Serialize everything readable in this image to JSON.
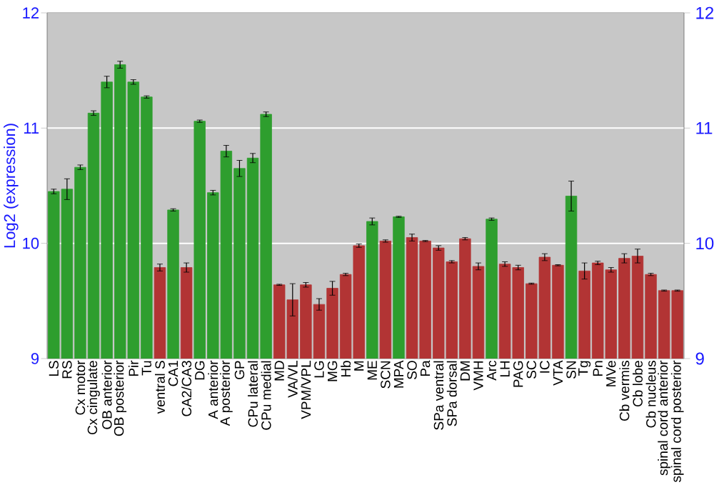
{
  "chart_data": {
    "type": "bar",
    "ylabel": "Log2 (expression)",
    "categories": [
      "LS",
      "RS",
      "Cx motor",
      "Cx cingulate",
      "OB anterior",
      "OB posterior",
      "Pir",
      "Tu",
      "ventral S",
      "CA1",
      "CA2/CA3",
      "DG",
      "A anterior",
      "A posterior",
      "GP",
      "CPu lateral",
      "CPu medial",
      "MD",
      "VA/VL",
      "VPM/VPL",
      "LG",
      "MG",
      "Hb",
      "M",
      "ME",
      "SCN",
      "MPA",
      "SO",
      "Pa",
      "SPa ventral",
      "SPa dorsal",
      "DM",
      "VMH",
      "Arc",
      "LH",
      "PAG",
      "SC",
      "IC",
      "VTA",
      "SN",
      "Tg",
      "Pn",
      "MVe",
      "Cb vermis",
      "Cb lobe",
      "Cb nucleus",
      "spinal cord anterior",
      "spinal cord posterior"
    ],
    "values": [
      10.45,
      10.47,
      10.66,
      11.13,
      11.4,
      11.55,
      11.4,
      11.27,
      9.79,
      10.29,
      9.79,
      11.06,
      10.44,
      10.8,
      10.65,
      10.74,
      11.12,
      9.64,
      9.51,
      9.64,
      9.47,
      9.61,
      9.73,
      9.98,
      10.19,
      10.02,
      10.23,
      10.05,
      10.02,
      9.96,
      9.84,
      10.04,
      9.8,
      10.21,
      9.82,
      9.79,
      9.65,
      9.88,
      9.81,
      10.41,
      9.76,
      9.83,
      9.77,
      9.87,
      9.89,
      9.73,
      9.59,
      9.59
    ],
    "errors": [
      0.02,
      0.09,
      0.02,
      0.02,
      0.05,
      0.03,
      0.02,
      0.01,
      0.03,
      0.01,
      0.04,
      0.01,
      0.02,
      0.05,
      0.07,
      0.04,
      0.02,
      0.005,
      0.14,
      0.02,
      0.05,
      0.06,
      0.01,
      0.015,
      0.03,
      0.01,
      0.005,
      0.03,
      0.005,
      0.02,
      0.01,
      0.01,
      0.03,
      0.01,
      0.02,
      0.02,
      0.005,
      0.03,
      0.005,
      0.13,
      0.07,
      0.015,
      0.02,
      0.04,
      0.06,
      0.01,
      0.005,
      0.005
    ],
    "colors": [
      "#2e9e2e",
      "#2e9e2e",
      "#2e9e2e",
      "#2e9e2e",
      "#2e9e2e",
      "#2e9e2e",
      "#2e9e2e",
      "#2e9e2e",
      "#b23434",
      "#2e9e2e",
      "#b23434",
      "#2e9e2e",
      "#2e9e2e",
      "#2e9e2e",
      "#2e9e2e",
      "#2e9e2e",
      "#2e9e2e",
      "#b23434",
      "#b23434",
      "#b23434",
      "#b23434",
      "#b23434",
      "#b23434",
      "#b23434",
      "#2e9e2e",
      "#b23434",
      "#2e9e2e",
      "#b23434",
      "#b23434",
      "#b23434",
      "#b23434",
      "#b23434",
      "#b23434",
      "#2e9e2e",
      "#b23434",
      "#b23434",
      "#b23434",
      "#b23434",
      "#b23434",
      "#2e9e2e",
      "#b23434",
      "#b23434",
      "#b23434",
      "#b23434",
      "#b23434",
      "#b23434",
      "#b23434",
      "#b23434"
    ],
    "ylim": [
      9,
      12
    ],
    "yticks": [
      9,
      10,
      11,
      12
    ],
    "y2lim": [
      9,
      12
    ],
    "y2ticks": [
      9,
      10,
      11,
      12
    ],
    "grid": "y"
  }
}
